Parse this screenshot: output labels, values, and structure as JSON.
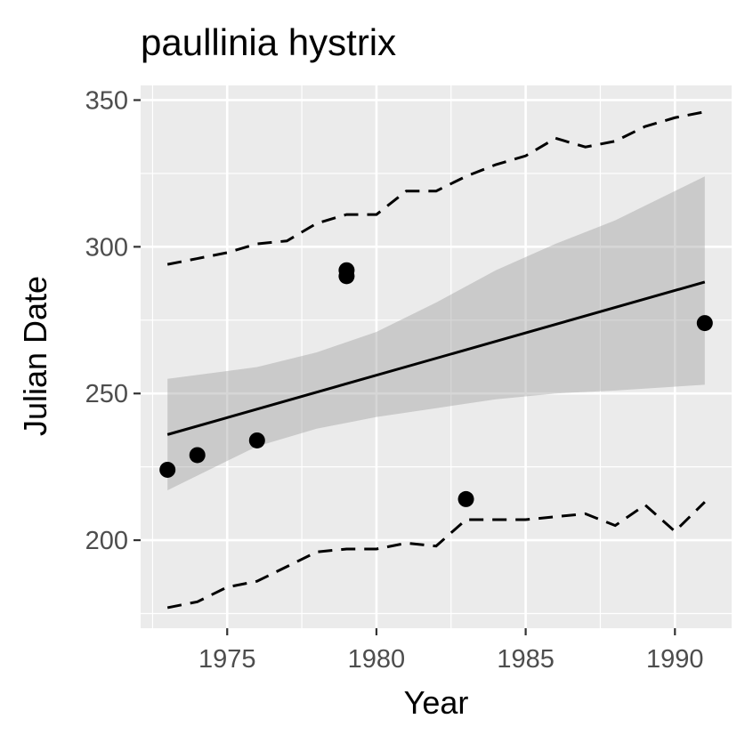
{
  "chart_data": {
    "type": "scatter",
    "title": "paullinia hystrix",
    "xlabel": "Year",
    "ylabel": "Julian Date",
    "xlim": [
      1972.1,
      1991.9
    ],
    "ylim": [
      170,
      355
    ],
    "x_ticks": [
      1975,
      1980,
      1985,
      1990
    ],
    "x_tick_labels": [
      "1975",
      "1980",
      "1985",
      "1990"
    ],
    "y_ticks": [
      200,
      250,
      300,
      350
    ],
    "y_tick_labels": [
      "200",
      "250",
      "300",
      "350"
    ],
    "grid": true,
    "legend": "none",
    "points": [
      {
        "x": 1973,
        "y": 224
      },
      {
        "x": 1974,
        "y": 229
      },
      {
        "x": 1976,
        "y": 234
      },
      {
        "x": 1979,
        "y": 292
      },
      {
        "x": 1979,
        "y": 290
      },
      {
        "x": 1983,
        "y": 214
      },
      {
        "x": 1991,
        "y": 274
      }
    ],
    "trend_line": {
      "x": [
        1973,
        1991
      ],
      "y": [
        236,
        288
      ]
    },
    "confidence_band": {
      "x": [
        1973,
        1976,
        1978,
        1980,
        1982,
        1984,
        1986,
        1988,
        1991
      ],
      "upper": [
        255,
        259,
        264,
        271,
        281,
        292,
        301,
        309,
        324
      ],
      "lower": [
        217,
        232,
        238,
        242,
        245,
        248,
        250,
        251,
        253
      ]
    },
    "upper_dashed": {
      "x": [
        1973,
        1974,
        1975,
        1976,
        1977,
        1978,
        1979,
        1980,
        1981,
        1982,
        1983,
        1984,
        1985,
        1986,
        1987,
        1988,
        1989,
        1990,
        1991
      ],
      "y": [
        294,
        296,
        298,
        301,
        302,
        308,
        311,
        311,
        319,
        319,
        324,
        328,
        331,
        337,
        334,
        336,
        341,
        344,
        346
      ]
    },
    "lower_dashed": {
      "x": [
        1973,
        1974,
        1975,
        1976,
        1977,
        1978,
        1979,
        1980,
        1981,
        1982,
        1983,
        1984,
        1985,
        1986,
        1987,
        1988,
        1989,
        1990,
        1991
      ],
      "y": [
        177,
        179,
        184,
        186,
        191,
        196,
        197,
        197,
        199,
        198,
        207,
        207,
        207,
        208,
        209,
        205,
        212,
        203,
        213
      ]
    },
    "colors": {
      "panel": "#ebebeb",
      "grid": "#ffffff",
      "band": "#999999",
      "line": "#000000",
      "points": "#000000"
    }
  }
}
